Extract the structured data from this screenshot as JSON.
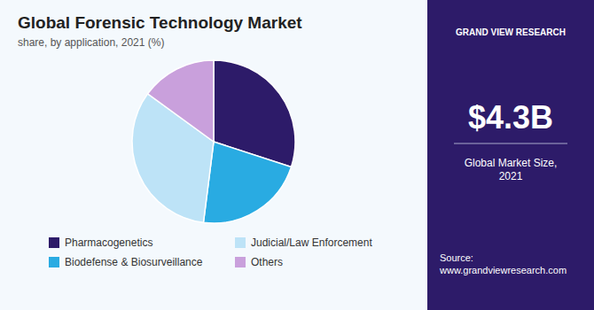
{
  "chart_data": {
    "type": "pie",
    "title": "Global Forensic Technology Market",
    "subtitle": "share, by application, 2021 (%)",
    "categories": [
      "Pharmacogenetics",
      "Biodefense & Biosurveillance",
      "Judicial/Law Enforcement",
      "Others"
    ],
    "values": [
      30,
      22,
      33,
      15
    ],
    "colors": [
      "#2d1b69",
      "#29abe2",
      "#bde3f7",
      "#c9a0dc"
    ],
    "legend": "bottom",
    "annotations": [
      "GRAND VIEW RESEARCH",
      "$4.3B",
      "Global Market Size,\n2021",
      "Source:\nwww.grandviewresearch.com"
    ]
  }
}
